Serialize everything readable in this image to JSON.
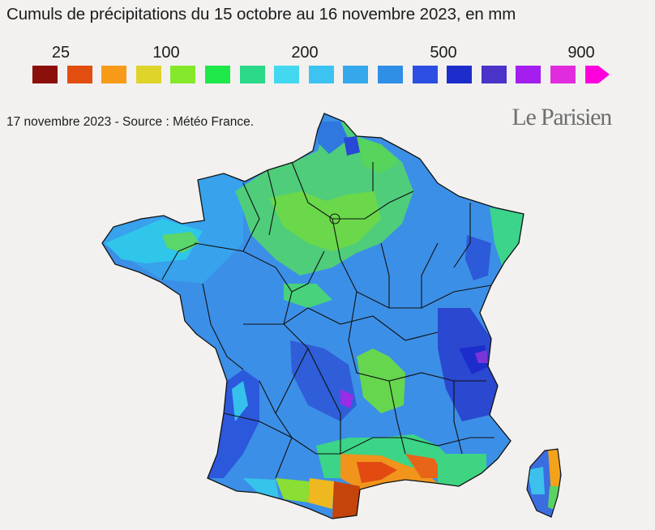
{
  "title": "Cumuls de précipitations du 15 octobre au 16 novembre 2023, en mm",
  "legend": {
    "tick_labels": [
      "25",
      "100",
      "200",
      "500",
      "900"
    ],
    "colors": [
      "#8b0f0a",
      "#e24e0f",
      "#f79a18",
      "#dfd42a",
      "#85e82a",
      "#1ee84a",
      "#2ad888",
      "#43d8f0",
      "#3cc3f2",
      "#35a8ec",
      "#2f8ee6",
      "#2c4ee2",
      "#1d2dcc",
      "#4a33c8",
      "#a41ef0",
      "#e02cdc",
      "#ff00dd"
    ]
  },
  "source": "17 novembre 2023 - Source : Météo France.",
  "brand": "Le Parisien",
  "map": {
    "region": "France",
    "regions_colors": {
      "west_atlantic": "#3d86e4",
      "brittany_interior": "#3aa6ec",
      "paris_basin": "#62d850",
      "champagne": "#6ad84a",
      "southwest_landes": "#2c58dc",
      "massif_central": "#3a4cd0",
      "alps": "#2c48cc",
      "languedoc_coast": "#e24a12",
      "roussillon": "#c4440c",
      "corsica_east": "#f4a21a"
    }
  }
}
